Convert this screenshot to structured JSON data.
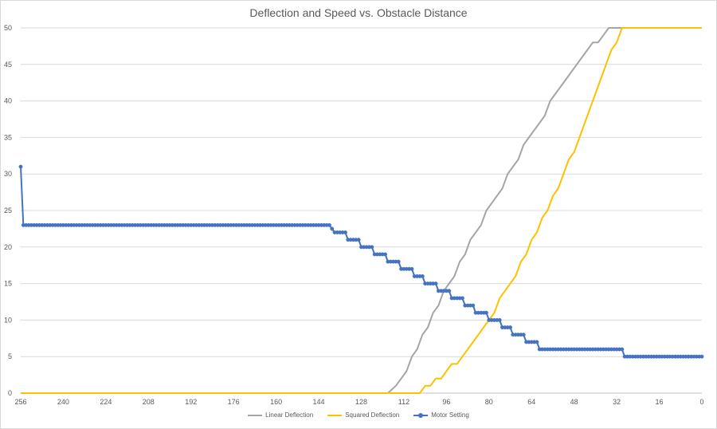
{
  "chart_data": {
    "type": "line",
    "title": "Deflection and Speed vs. Obstacle Distance",
    "xlabel": "",
    "ylabel": "",
    "x_reversed": true,
    "xlim": [
      256,
      0
    ],
    "ylim": [
      0,
      50
    ],
    "x_ticks": [
      256,
      240,
      224,
      208,
      192,
      176,
      160,
      144,
      128,
      112,
      96,
      80,
      64,
      48,
      32,
      16,
      0
    ],
    "y_ticks": [
      0,
      5,
      10,
      15,
      20,
      25,
      30,
      35,
      40,
      45,
      50
    ],
    "grid": "horizontal",
    "legend_position": "bottom",
    "series": [
      {
        "name": "Linear Deflection",
        "color": "#a5a5a5",
        "marker": "none",
        "points": [
          [
            256,
            0
          ],
          [
            118,
            0
          ],
          [
            115,
            1
          ],
          [
            113,
            2
          ],
          [
            111,
            3
          ],
          [
            109,
            5
          ],
          [
            107,
            6
          ],
          [
            105,
            8
          ],
          [
            103,
            9
          ],
          [
            101,
            11
          ],
          [
            99,
            12
          ],
          [
            97,
            14
          ],
          [
            95,
            15
          ],
          [
            93,
            16
          ],
          [
            91,
            18
          ],
          [
            89,
            19
          ],
          [
            87,
            21
          ],
          [
            85,
            22
          ],
          [
            83,
            23
          ],
          [
            81,
            25
          ],
          [
            79,
            26
          ],
          [
            77,
            27
          ],
          [
            75,
            28
          ],
          [
            73,
            30
          ],
          [
            71,
            31
          ],
          [
            69,
            32
          ],
          [
            67,
            34
          ],
          [
            65,
            35
          ],
          [
            63,
            36
          ],
          [
            61,
            37
          ],
          [
            59,
            38
          ],
          [
            57,
            40
          ],
          [
            55,
            41
          ],
          [
            53,
            42
          ],
          [
            51,
            43
          ],
          [
            49,
            44
          ],
          [
            47,
            45
          ],
          [
            45,
            46
          ],
          [
            43,
            47
          ],
          [
            41,
            48
          ],
          [
            39,
            48
          ],
          [
            37,
            49
          ],
          [
            35,
            50
          ],
          [
            30,
            50
          ],
          [
            0,
            50
          ]
        ]
      },
      {
        "name": "Squared Deflection",
        "color": "#ffc000",
        "marker": "none",
        "points": [
          [
            256,
            0
          ],
          [
            106,
            0
          ],
          [
            104,
            1
          ],
          [
            102,
            1
          ],
          [
            100,
            2
          ],
          [
            98,
            2
          ],
          [
            96,
            3
          ],
          [
            94,
            4
          ],
          [
            92,
            4
          ],
          [
            90,
            5
          ],
          [
            88,
            6
          ],
          [
            86,
            7
          ],
          [
            84,
            8
          ],
          [
            82,
            9
          ],
          [
            80,
            10
          ],
          [
            78,
            11
          ],
          [
            76,
            13
          ],
          [
            74,
            14
          ],
          [
            72,
            15
          ],
          [
            70,
            16
          ],
          [
            68,
            18
          ],
          [
            66,
            19
          ],
          [
            64,
            21
          ],
          [
            62,
            22
          ],
          [
            60,
            24
          ],
          [
            58,
            25
          ],
          [
            56,
            27
          ],
          [
            54,
            28
          ],
          [
            52,
            30
          ],
          [
            50,
            32
          ],
          [
            48,
            33
          ],
          [
            46,
            35
          ],
          [
            44,
            37
          ],
          [
            42,
            39
          ],
          [
            40,
            41
          ],
          [
            38,
            43
          ],
          [
            36,
            45
          ],
          [
            34,
            47
          ],
          [
            32,
            48
          ],
          [
            30,
            50
          ],
          [
            0,
            50
          ]
        ]
      },
      {
        "name": "Motor Setting",
        "color": "#4472c4",
        "marker": "circle",
        "points": [
          [
            256,
            31
          ],
          [
            255,
            23
          ],
          [
            140,
            23
          ],
          [
            138,
            22
          ],
          [
            134,
            22
          ],
          [
            133,
            21
          ],
          [
            129,
            21
          ],
          [
            128,
            20
          ],
          [
            124,
            20
          ],
          [
            123,
            19
          ],
          [
            119,
            19
          ],
          [
            118,
            18
          ],
          [
            114,
            18
          ],
          [
            113,
            17
          ],
          [
            109,
            17
          ],
          [
            108,
            16
          ],
          [
            105,
            16
          ],
          [
            104,
            15
          ],
          [
            100,
            15
          ],
          [
            99,
            14
          ],
          [
            95,
            14
          ],
          [
            94,
            13
          ],
          [
            90,
            13
          ],
          [
            89,
            12
          ],
          [
            86,
            12
          ],
          [
            85,
            11
          ],
          [
            81,
            11
          ],
          [
            80,
            10
          ],
          [
            76,
            10
          ],
          [
            75,
            9
          ],
          [
            72,
            9
          ],
          [
            71,
            8
          ],
          [
            67,
            8
          ],
          [
            66,
            7
          ],
          [
            62,
            7
          ],
          [
            61,
            6
          ],
          [
            30,
            6
          ],
          [
            29,
            5
          ],
          [
            0,
            5
          ]
        ]
      }
    ]
  }
}
